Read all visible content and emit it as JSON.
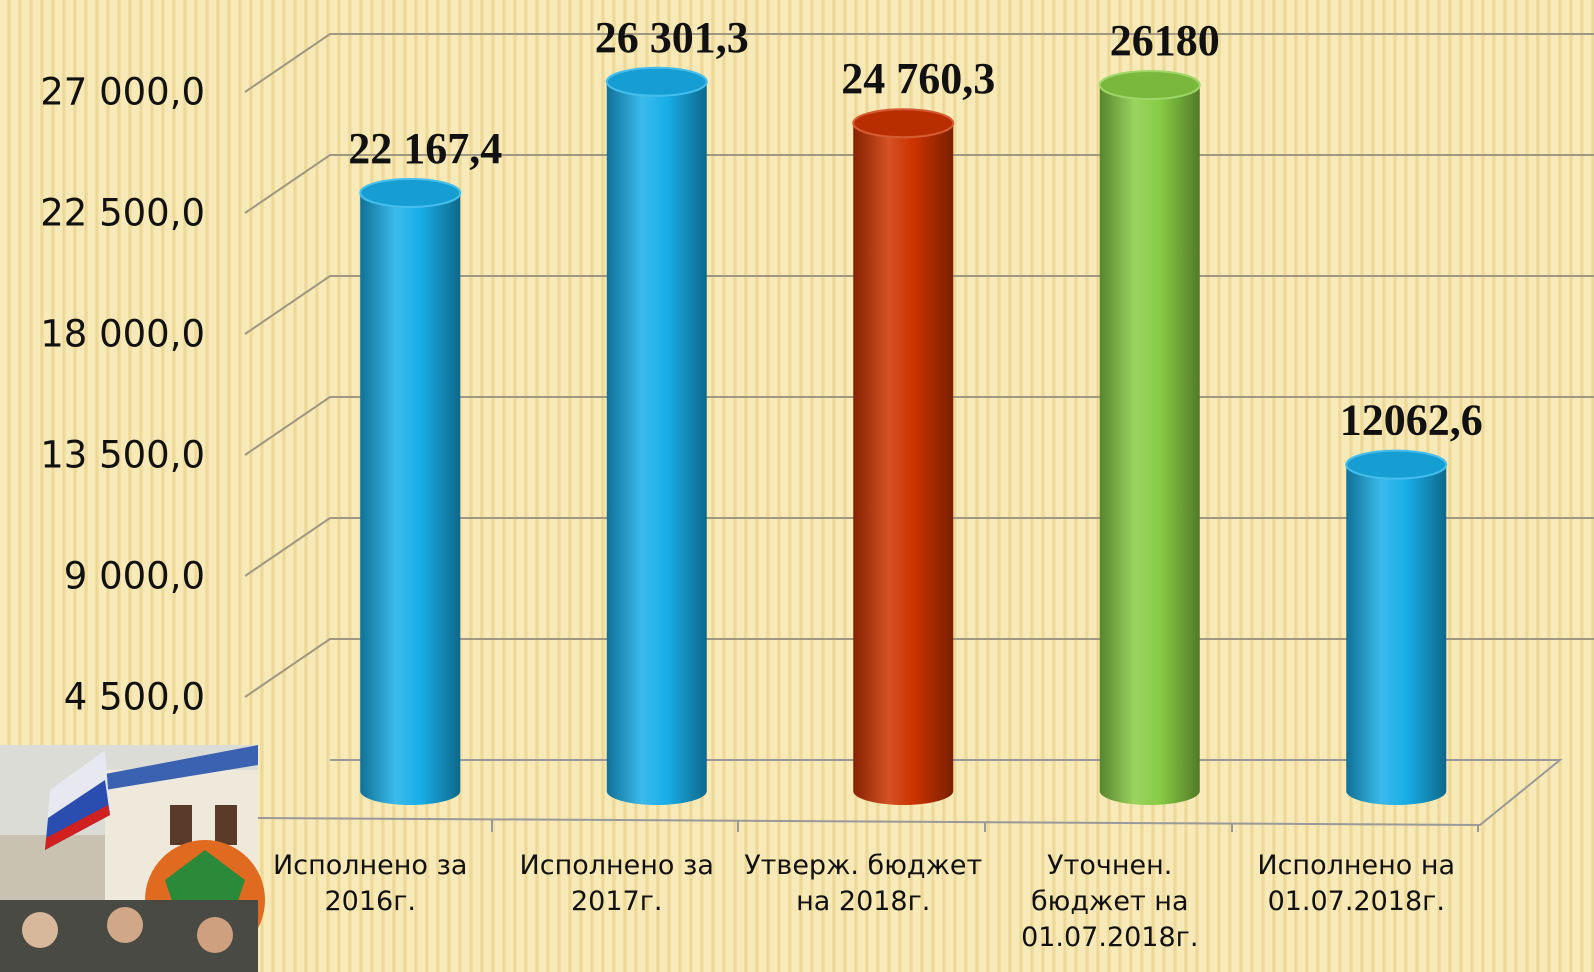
{
  "chart_data": {
    "type": "bar",
    "categories": [
      "Исполнено за\n2016г.",
      "Исполнено за\n2017г.",
      "Утверж. бюджет\nна 2018г.",
      "Уточнен.\nбюджет на\n01.07.2018г.",
      "Исполнено на\n01.07.2018г."
    ],
    "values": [
      22167.4,
      26301.3,
      24760.3,
      26180,
      12062.6
    ],
    "value_labels": [
      "22 167,4",
      "26 301,3",
      "24 760,3",
      "26180",
      "12062,6"
    ],
    "colors": [
      "#18aee8",
      "#18aee8",
      "#cc3300",
      "#88cc44",
      "#18aee8"
    ],
    "ylim": [
      0,
      27000
    ],
    "yticks": [
      {
        "value": 4500,
        "label": "4 500,0"
      },
      {
        "value": 9000,
        "label": "9 000,0"
      },
      {
        "value": 13500,
        "label": "13 500,0"
      },
      {
        "value": 18000,
        "label": "18 000,0"
      },
      {
        "value": 22500,
        "label": "22 500,0"
      },
      {
        "value": 27000,
        "label": "27 000,0"
      }
    ],
    "grid": true
  }
}
